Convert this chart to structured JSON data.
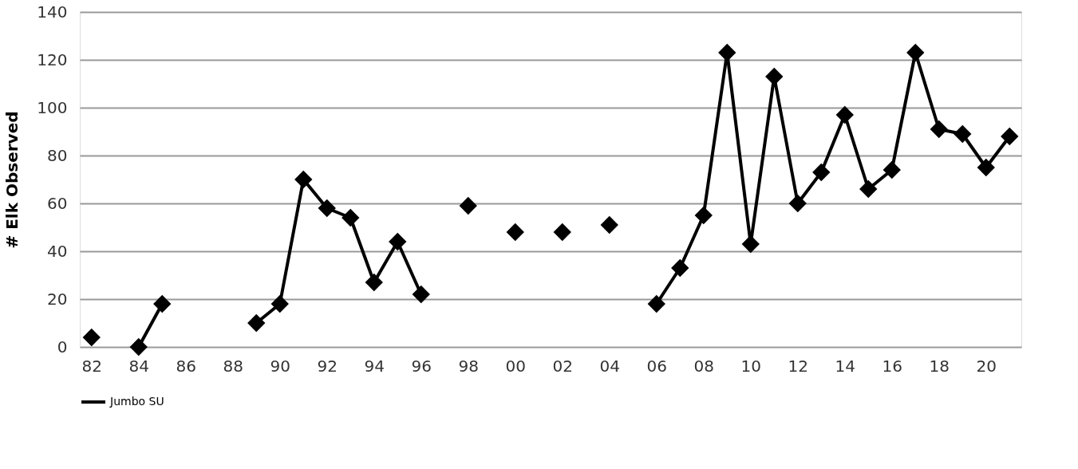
{
  "chart_data": {
    "type": "line",
    "ylabel": "# Elk Observed",
    "categories": [
      "82",
      null,
      "84",
      null,
      "86",
      null,
      "88",
      null,
      "90",
      null,
      "92",
      null,
      "94",
      null,
      "96",
      null,
      "98",
      null,
      "00",
      null,
      "02",
      null,
      "04",
      null,
      "06",
      null,
      "08",
      null,
      "10",
      null,
      "12",
      null,
      "14",
      null,
      "16",
      null,
      "18",
      null,
      "20",
      null
    ],
    "series": [
      {
        "name": "Jumbo SU",
        "color": "#000000",
        "values": [
          4,
          null,
          0,
          18,
          null,
          null,
          null,
          10,
          18,
          70,
          58,
          54,
          27,
          44,
          22,
          null,
          59,
          null,
          48,
          null,
          48,
          null,
          51,
          null,
          18,
          33,
          55,
          123,
          43,
          113,
          60,
          73,
          97,
          66,
          74,
          123,
          91,
          89,
          75,
          88
        ]
      }
    ],
    "ylim": [
      0,
      140
    ],
    "yticks": [
      0,
      20,
      40,
      60,
      80,
      100,
      120,
      140
    ],
    "grid": "y",
    "legend": "bottom",
    "marker": "diamond",
    "line_style": "solid"
  }
}
